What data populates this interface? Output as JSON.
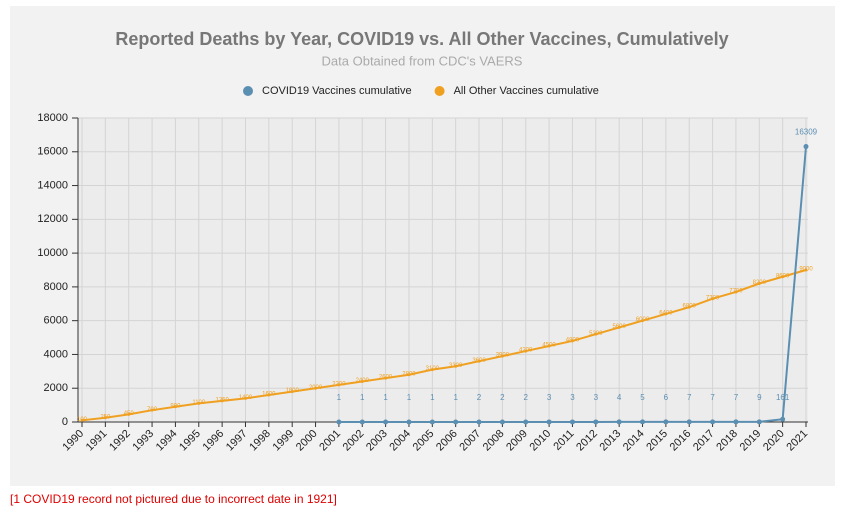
{
  "chart_data": {
    "type": "line",
    "title": "Reported Deaths by Year, COVID19 vs. All Other Vaccines, Cumulatively",
    "subtitle": "Data Obtained from CDC's VAERS",
    "footnote": "[1 COVID19 record not pictured due to incorrect date in 1921]",
    "categories": [
      "1990",
      "1991",
      "1992",
      "1993",
      "1994",
      "1995",
      "1996",
      "1997",
      "1998",
      "1999",
      "2000",
      "2001",
      "2002",
      "2003",
      "2004",
      "2005",
      "2006",
      "2007",
      "2008",
      "2009",
      "2010",
      "2011",
      "2012",
      "2013",
      "2014",
      "2015",
      "2016",
      "2017",
      "2018",
      "2019",
      "2020",
      "2021"
    ],
    "series": [
      {
        "name": "COVID19 Vaccines cumulative",
        "color": "#5b8fb2",
        "values": [
          null,
          null,
          null,
          null,
          null,
          null,
          null,
          null,
          null,
          null,
          null,
          1,
          1,
          1,
          1,
          1,
          1,
          2,
          2,
          2,
          3,
          3,
          3,
          4,
          5,
          6,
          7,
          7,
          7,
          9,
          161,
          16309
        ]
      },
      {
        "name": "All Other Vaccines cumulative",
        "color": "#f0a020",
        "values": [
          100,
          250,
          450,
          700,
          900,
          1100,
          1250,
          1400,
          1600,
          1800,
          2000,
          2200,
          2400,
          2600,
          2800,
          3100,
          3300,
          3600,
          3900,
          4200,
          4500,
          4800,
          5200,
          5600,
          6000,
          6400,
          6800,
          7300,
          7700,
          8200,
          8600,
          9000
        ]
      }
    ],
    "ylim": [
      0,
      18000
    ],
    "yticks": [
      0,
      2000,
      4000,
      6000,
      8000,
      10000,
      12000,
      14000,
      16000,
      18000
    ],
    "grid": true,
    "legend": "top"
  }
}
